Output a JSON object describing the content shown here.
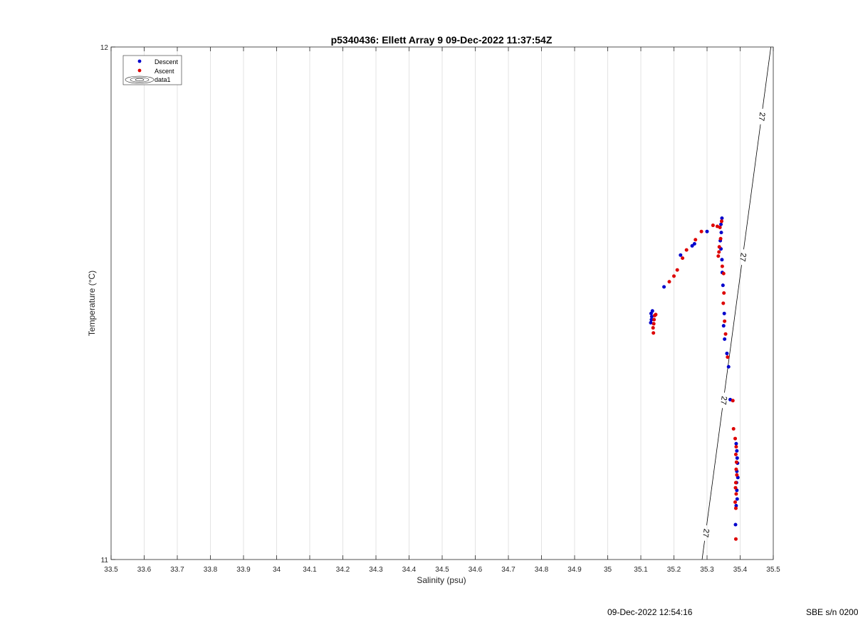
{
  "chart_data": {
    "type": "scatter",
    "title": "p5340436: Ellett Array 9 09-Dec-2022 11:37:54Z",
    "xlabel": "Salinity (psu)",
    "ylabel": "Temperature (°C)",
    "xlim": [
      33.5,
      35.5
    ],
    "ylim": [
      11,
      12
    ],
    "xticks": [
      "33.5",
      "33.6",
      "33.7",
      "33.8",
      "33.9",
      "34",
      "34.1",
      "34.2",
      "34.3",
      "34.4",
      "34.5",
      "34.6",
      "34.7",
      "34.8",
      "34.9",
      "35",
      "35.1",
      "35.2",
      "35.3",
      "35.4",
      "35.5"
    ],
    "yticks": [
      "11",
      "12"
    ],
    "grid": "vertical",
    "legend_position": "top-left",
    "legend": [
      "Descent",
      "Ascent",
      "data1"
    ],
    "series": [
      {
        "name": "Descent",
        "color": "#0000cc",
        "points": [
          [
            35.132,
            11.468
          ],
          [
            35.13,
            11.462
          ],
          [
            35.133,
            11.474
          ],
          [
            35.131,
            11.48
          ],
          [
            35.135,
            11.485
          ],
          [
            35.17,
            11.532
          ],
          [
            35.22,
            11.594
          ],
          [
            35.255,
            11.612
          ],
          [
            35.262,
            11.616
          ],
          [
            35.3,
            11.64
          ],
          [
            35.345,
            11.666
          ],
          [
            35.342,
            11.654
          ],
          [
            35.343,
            11.638
          ],
          [
            35.34,
            11.622
          ],
          [
            35.342,
            11.606
          ],
          [
            35.345,
            11.585
          ],
          [
            35.346,
            11.56
          ],
          [
            35.348,
            11.535
          ],
          [
            35.352,
            11.48
          ],
          [
            35.35,
            11.456
          ],
          [
            35.353,
            11.43
          ],
          [
            35.36,
            11.402
          ],
          [
            35.365,
            11.376
          ],
          [
            35.37,
            11.312
          ],
          [
            35.388,
            11.226
          ],
          [
            35.39,
            11.212
          ],
          [
            35.391,
            11.198
          ],
          [
            35.392,
            11.188
          ],
          [
            35.39,
            11.172
          ],
          [
            35.393,
            11.16
          ],
          [
            35.389,
            11.15
          ],
          [
            35.39,
            11.135
          ],
          [
            35.391,
            11.118
          ],
          [
            35.388,
            11.105
          ],
          [
            35.386,
            11.068
          ]
        ]
      },
      {
        "name": "Ascent",
        "color": "#dd0000",
        "points": [
          [
            35.138,
            11.442
          ],
          [
            35.137,
            11.452
          ],
          [
            35.139,
            11.46
          ],
          [
            35.14,
            11.468
          ],
          [
            35.142,
            11.476
          ],
          [
            35.145,
            11.478
          ],
          [
            35.186,
            11.542
          ],
          [
            35.2,
            11.553
          ],
          [
            35.21,
            11.565
          ],
          [
            35.226,
            11.588
          ],
          [
            35.238,
            11.604
          ],
          [
            35.265,
            11.624
          ],
          [
            35.283,
            11.64
          ],
          [
            35.318,
            11.652
          ],
          [
            35.331,
            11.65
          ],
          [
            35.344,
            11.66
          ],
          [
            35.339,
            11.648
          ],
          [
            35.341,
            11.626
          ],
          [
            35.337,
            11.61
          ],
          [
            35.336,
            11.6
          ],
          [
            35.334,
            11.592
          ],
          [
            35.346,
            11.572
          ],
          [
            35.35,
            11.558
          ],
          [
            35.351,
            11.52
          ],
          [
            35.349,
            11.5
          ],
          [
            35.353,
            11.465
          ],
          [
            35.356,
            11.44
          ],
          [
            35.362,
            11.395
          ],
          [
            35.378,
            11.31
          ],
          [
            35.38,
            11.255
          ],
          [
            35.385,
            11.236
          ],
          [
            35.388,
            11.22
          ],
          [
            35.387,
            11.205
          ],
          [
            35.389,
            11.19
          ],
          [
            35.388,
            11.176
          ],
          [
            35.39,
            11.165
          ],
          [
            35.387,
            11.15
          ],
          [
            35.386,
            11.14
          ],
          [
            35.388,
            11.128
          ],
          [
            35.385,
            11.112
          ],
          [
            35.387,
            11.1
          ],
          [
            35.387,
            11.04
          ]
        ]
      }
    ],
    "contour": {
      "name": "data1",
      "level_label": "27",
      "line": [
        [
          35.285,
          11.0
        ],
        [
          35.5,
          12.035
        ]
      ]
    }
  },
  "footer": {
    "datetime": "09-Dec-2022 12:54:16",
    "serial": "SBE s/n 0200"
  }
}
